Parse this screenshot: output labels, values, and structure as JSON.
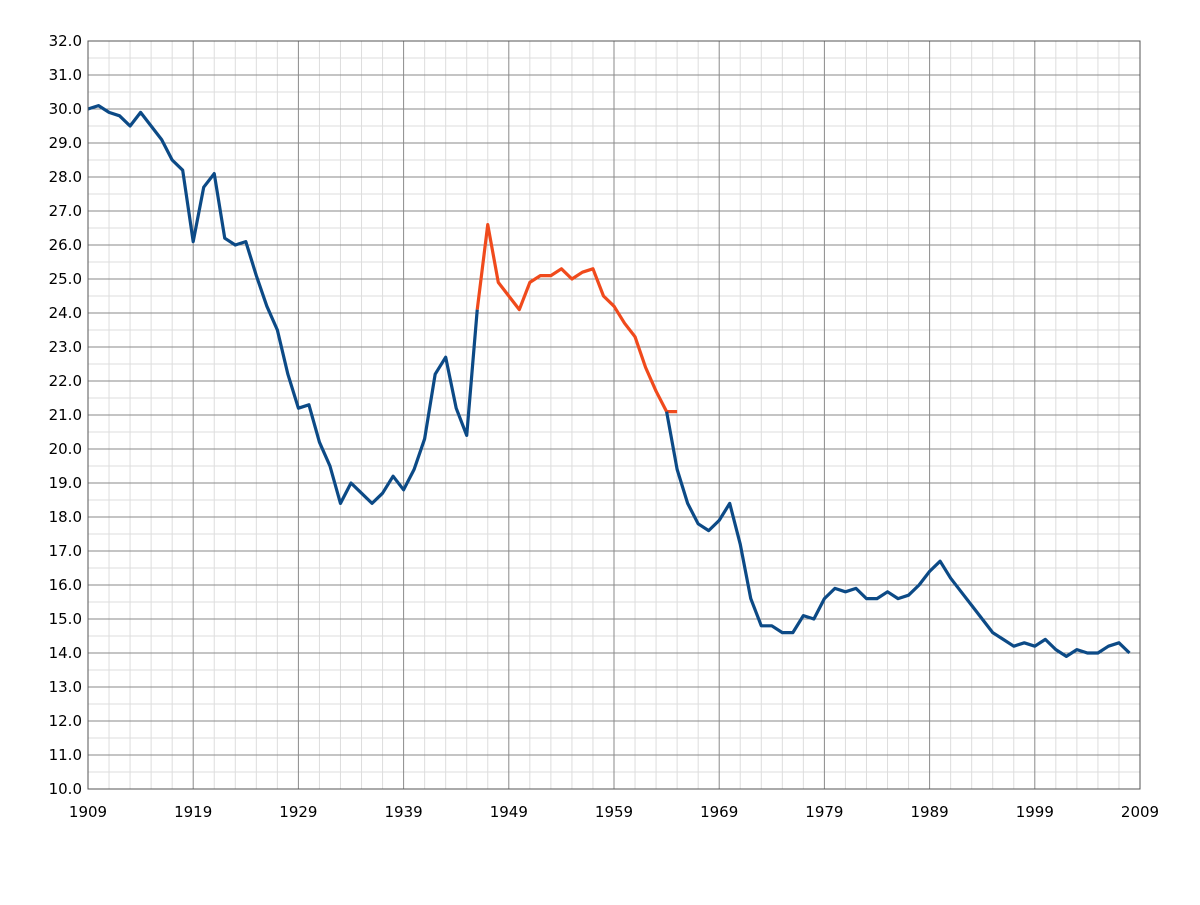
{
  "chart_data": {
    "type": "line",
    "title": "",
    "xlabel": "",
    "ylabel": "",
    "xlim": [
      1909,
      2009
    ],
    "ylim": [
      10,
      32
    ],
    "grid": true,
    "x_ticks": [
      "1909",
      "1919",
      "1929",
      "1939",
      "1949",
      "1959",
      "1969",
      "1979",
      "1989",
      "1999",
      "2009"
    ],
    "y_ticks": [
      "10.0",
      "11.0",
      "12.0",
      "13.0",
      "14.0",
      "15.0",
      "16.0",
      "17.0",
      "18.0",
      "19.0",
      "20.0",
      "21.0",
      "22.0",
      "23.0",
      "24.0",
      "25.0",
      "26.0",
      "27.0",
      "28.0",
      "29.0",
      "30.0",
      "31.0",
      "32.0"
    ],
    "colors": {
      "main": "#0c4a86",
      "highlight": "#f04a1c"
    },
    "series": [
      {
        "color": "#0c4a86",
        "x": [
          1909,
          1910,
          1911,
          1912,
          1913,
          1914,
          1915,
          1916,
          1917,
          1918,
          1919,
          1920,
          1921,
          1922,
          1923,
          1924,
          1925,
          1926,
          1927,
          1928,
          1929,
          1930,
          1931,
          1932,
          1933,
          1934,
          1935,
          1936,
          1937,
          1938,
          1939,
          1940,
          1941,
          1942,
          1943,
          1944,
          1945,
          1946
        ],
        "values": [
          30.0,
          30.1,
          29.9,
          29.8,
          29.5,
          29.9,
          29.5,
          29.1,
          28.5,
          28.2,
          26.1,
          27.7,
          28.1,
          26.2,
          26.0,
          26.1,
          25.1,
          24.2,
          23.5,
          22.2,
          21.2,
          21.3,
          20.2,
          19.5,
          18.4,
          19.0,
          18.7,
          18.4,
          18.7,
          19.2,
          18.8,
          19.4,
          20.3,
          22.2,
          22.7,
          21.2,
          20.4,
          24.1
        ]
      },
      {
        "color": "#f04a1c",
        "x": [
          1946,
          1947,
          1948,
          1949,
          1950,
          1951,
          1952,
          1953,
          1954,
          1955,
          1956,
          1957,
          1958,
          1959,
          1960,
          1961,
          1962,
          1963,
          1964,
          1965
        ],
        "values": [
          24.1,
          26.6,
          24.9,
          24.5,
          24.1,
          24.9,
          25.1,
          25.1,
          25.3,
          25.0,
          25.2,
          25.3,
          24.5,
          24.2,
          23.7,
          23.3,
          22.4,
          21.7,
          21.1,
          21.1
        ]
      },
      {
        "color": "#0c4a86",
        "x": [
          1964,
          1965,
          1966,
          1967,
          1968,
          1969,
          1970,
          1971,
          1972,
          1973,
          1974,
          1975,
          1976,
          1977,
          1978,
          1979,
          1980,
          1981,
          1982,
          1983,
          1984,
          1985,
          1986,
          1987,
          1988,
          1989,
          1990,
          1991,
          1992,
          1993,
          1994,
          1995,
          1996,
          1997,
          1998,
          1999,
          2000,
          2001,
          2002,
          2003,
          2004,
          2005,
          2006,
          2007,
          2008
        ],
        "values": [
          21.1,
          19.4,
          18.4,
          17.8,
          17.6,
          17.9,
          18.4,
          17.2,
          15.6,
          14.8,
          14.8,
          14.6,
          14.6,
          15.1,
          15.0,
          15.6,
          15.9,
          15.8,
          15.9,
          15.6,
          15.6,
          15.8,
          15.6,
          15.7,
          16.0,
          16.4,
          16.7,
          16.2,
          15.8,
          15.4,
          15.0,
          14.6,
          14.4,
          14.2,
          14.3,
          14.2,
          14.4,
          14.1,
          13.9,
          14.1,
          14.0,
          14.0,
          14.2,
          14.3,
          14.0
        ]
      }
    ]
  }
}
